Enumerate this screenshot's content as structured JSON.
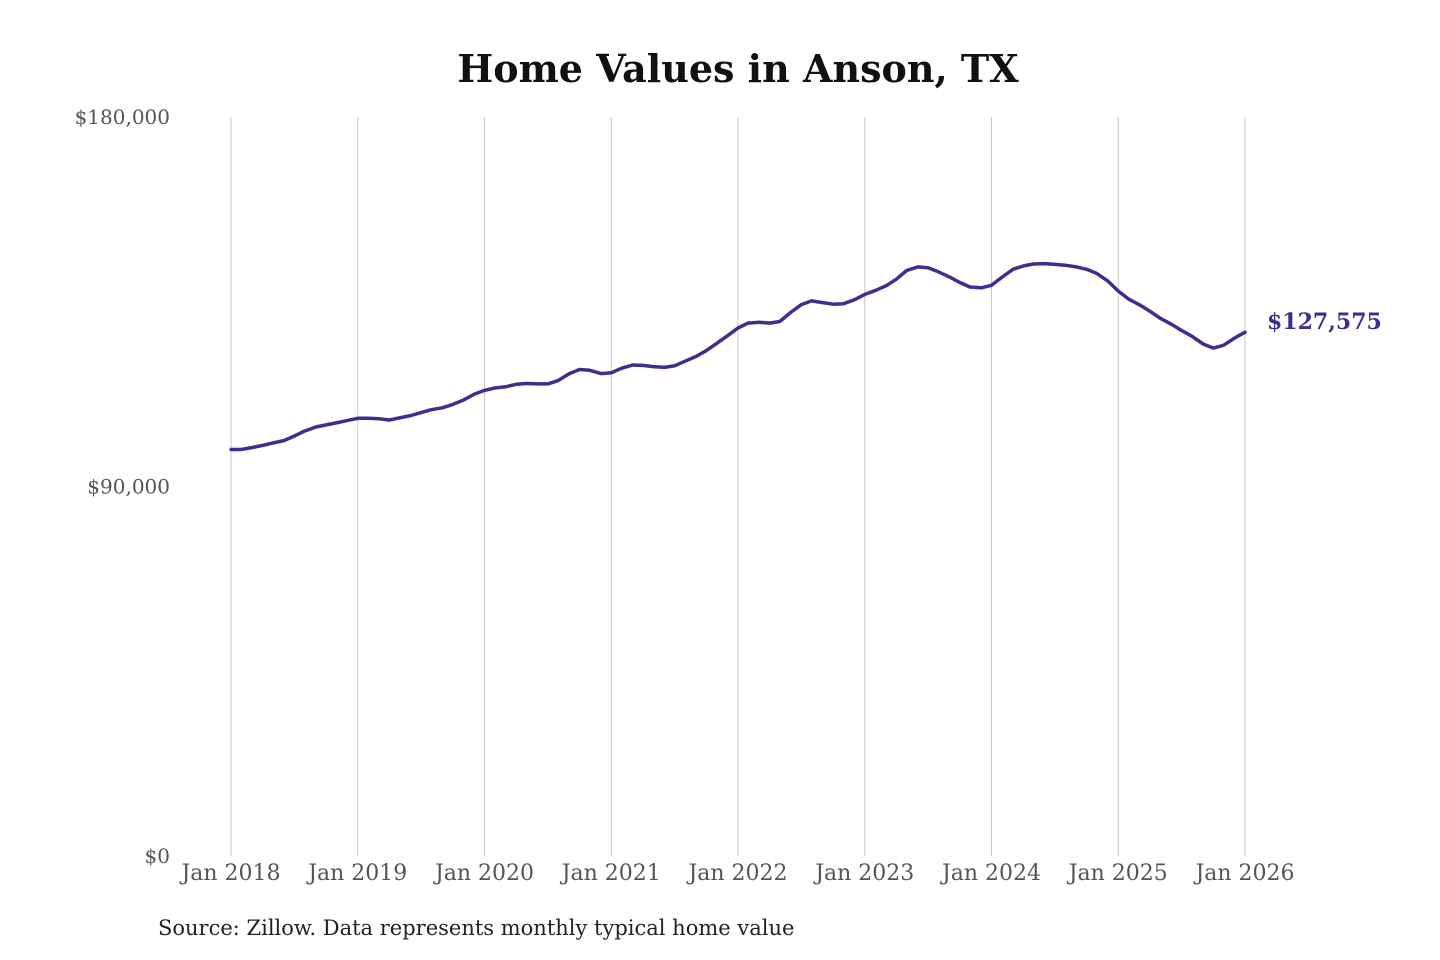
{
  "chart_data": {
    "type": "line",
    "title": "Home Values in Anson, TX",
    "xlabel": "",
    "ylabel": "",
    "ylim": [
      0,
      180000
    ],
    "yticks": [
      {
        "value": 0,
        "label": "$0"
      },
      {
        "value": 90000,
        "label": "$90,000"
      },
      {
        "value": 180000,
        "label": "$180,000"
      }
    ],
    "xticks": [
      {
        "value": 2018,
        "label": "Jan 2018"
      },
      {
        "value": 2019,
        "label": "Jan 2019"
      },
      {
        "value": 2020,
        "label": "Jan 2020"
      },
      {
        "value": 2021,
        "label": "Jan 2021"
      },
      {
        "value": 2022,
        "label": "Jan 2022"
      },
      {
        "value": 2023,
        "label": "Jan 2023"
      },
      {
        "value": 2024,
        "label": "Jan 2024"
      },
      {
        "value": 2025,
        "label": "Jan 2025"
      },
      {
        "value": 2026,
        "label": "Jan 2026"
      }
    ],
    "grid": "vertical",
    "line_color": "#3b2f8f",
    "end_label": "$127,575",
    "series": [
      {
        "x": [
          2018.0,
          2018.08,
          2018.17,
          2018.25,
          2018.33,
          2018.42,
          2018.5,
          2018.58,
          2018.67,
          2018.75,
          2018.83,
          2018.92,
          2019.0,
          2019.08,
          2019.17,
          2019.25,
          2019.33,
          2019.42,
          2019.5,
          2019.58,
          2019.67,
          2019.75,
          2019.83,
          2019.92,
          2020.0,
          2020.08,
          2020.17,
          2020.25,
          2020.33,
          2020.42,
          2020.5,
          2020.58,
          2020.67,
          2020.75,
          2020.83,
          2020.92,
          2021.0,
          2021.08,
          2021.17,
          2021.25,
          2021.33,
          2021.42,
          2021.5,
          2021.58,
          2021.67,
          2021.75,
          2021.83,
          2021.92,
          2022.0,
          2022.08,
          2022.17,
          2022.25,
          2022.33,
          2022.42,
          2022.5,
          2022.58,
          2022.67,
          2022.75,
          2022.83,
          2022.92,
          2023.0,
          2023.08,
          2023.17,
          2023.25,
          2023.33,
          2023.42,
          2023.5,
          2023.58,
          2023.67,
          2023.75,
          2023.83,
          2023.92,
          2024.0,
          2024.08,
          2024.17,
          2024.25,
          2024.33,
          2024.42,
          2024.5,
          2024.58,
          2024.67,
          2024.75,
          2024.83,
          2024.92,
          2025.0,
          2025.08,
          2025.17,
          2025.25,
          2025.33,
          2025.42,
          2025.5,
          2025.58,
          2025.67,
          2025.75,
          2025.83,
          2025.92,
          2026.0
        ],
        "values": [
          99000,
          99000,
          99500,
          100000,
          100600,
          101200,
          102300,
          103500,
          104500,
          105000,
          105500,
          106100,
          106600,
          106600,
          106500,
          106200,
          106700,
          107300,
          108000,
          108700,
          109200,
          110000,
          111000,
          112500,
          113400,
          114000,
          114300,
          114900,
          115100,
          115000,
          115000,
          115800,
          117500,
          118500,
          118300,
          117500,
          117700,
          118800,
          119600,
          119500,
          119200,
          119000,
          119400,
          120500,
          121700,
          123100,
          124800,
          126800,
          128600,
          129800,
          130000,
          129800,
          130200,
          132500,
          134300,
          135200,
          134800,
          134400,
          134500,
          135500,
          136800,
          137700,
          138900,
          140500,
          142600,
          143500,
          143300,
          142300,
          141000,
          139700,
          138600,
          138400,
          139000,
          140900,
          142900,
          143700,
          144200,
          144300,
          144100,
          143900,
          143500,
          142900,
          141900,
          140000,
          137600,
          135700,
          134200,
          132700,
          131000,
          129500,
          128000,
          126600,
          124700,
          123700,
          124400,
          126200,
          127575
        ]
      }
    ]
  },
  "source_text": "Source: Zillow. Data represents monthly typical home value"
}
